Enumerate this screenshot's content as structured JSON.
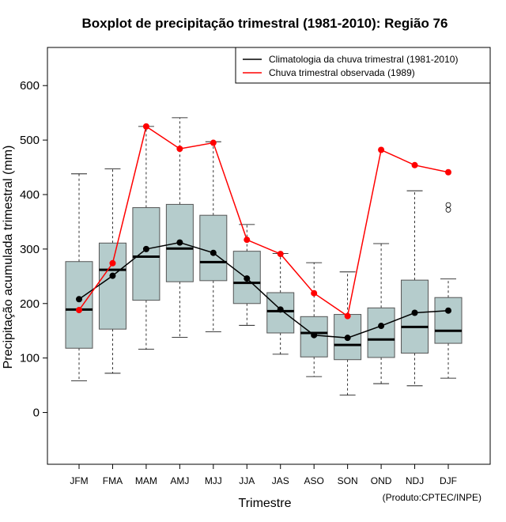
{
  "chart_data": {
    "type": "boxplot",
    "title": "Boxplot de precipitação trimestral (1981-2010): Região 76",
    "xlabel": "Trimestre",
    "ylabel": "Precipitação acumulada trimestral (mm)",
    "ylim": [
      -95,
      670
    ],
    "yticks": [
      0,
      100,
      200,
      300,
      400,
      500,
      600
    ],
    "yticks_labels": [
      "0",
      "100",
      "200",
      "300",
      "400",
      "500",
      "600"
    ],
    "categories": [
      "JFM",
      "FMA",
      "MAM",
      "AMJ",
      "MJJ",
      "JJA",
      "JAS",
      "ASO",
      "SON",
      "OND",
      "NDJ",
      "DJF"
    ],
    "boxes": [
      {
        "min": 58,
        "q1": 118,
        "median": 189,
        "q3": 277,
        "max": 438,
        "outliers": []
      },
      {
        "min": 72,
        "q1": 153,
        "median": 262,
        "q3": 311,
        "max": 447,
        "outliers": []
      },
      {
        "min": 116,
        "q1": 206,
        "median": 286,
        "q3": 376,
        "max": 525,
        "outliers": []
      },
      {
        "min": 138,
        "q1": 240,
        "median": 301,
        "q3": 382,
        "max": 541,
        "outliers": []
      },
      {
        "min": 148,
        "q1": 242,
        "median": 276,
        "q3": 362,
        "max": 497,
        "outliers": []
      },
      {
        "min": 160,
        "q1": 200,
        "median": 238,
        "q3": 296,
        "max": 345,
        "outliers": []
      },
      {
        "min": 107,
        "q1": 146,
        "median": 186,
        "q3": 220,
        "max": 292,
        "outliers": []
      },
      {
        "min": 66,
        "q1": 102,
        "median": 146,
        "q3": 176,
        "max": 275,
        "outliers": []
      },
      {
        "min": 32,
        "q1": 97,
        "median": 124,
        "q3": 180,
        "max": 258,
        "outliers": []
      },
      {
        "min": 53,
        "q1": 101,
        "median": 134,
        "q3": 192,
        "max": 310,
        "outliers": []
      },
      {
        "min": 49,
        "q1": 109,
        "median": 157,
        "q3": 243,
        "max": 407,
        "outliers": []
      },
      {
        "min": 63,
        "q1": 127,
        "median": 150,
        "q3": 211,
        "max": 245,
        "outliers": [
          372,
          381
        ]
      }
    ],
    "series": [
      {
        "name": "Climatologia da chuva trimestral (1981-2010)",
        "color": "#000000",
        "values": [
          208,
          251,
          300,
          312,
          293,
          246,
          189,
          142,
          137,
          159,
          183,
          187
        ]
      },
      {
        "name": "Chuva trimestral observada (1989)",
        "color": "#ff0000",
        "values": [
          188,
          274,
          525,
          484,
          495,
          317,
          291,
          219,
          177,
          482,
          454,
          441
        ]
      }
    ],
    "legend_position": "top-right",
    "box_fill": "#b5cccc",
    "credit": "(Produto:CPTEC/INPE)"
  }
}
